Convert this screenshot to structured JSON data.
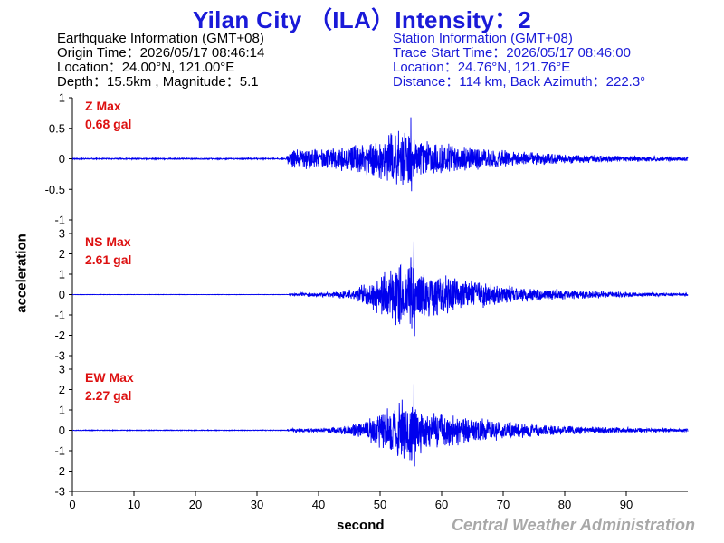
{
  "title": "Yilan City （ILA）Intensity：2",
  "earthquake": {
    "heading": "Earthquake Information  (GMT+08)",
    "origin_time": "Origin Time：2026/05/17 08:46:14",
    "location": "Location：24.00°N, 121.00°E",
    "depth": "Depth：15.5km , Magnitude：5.1"
  },
  "station": {
    "heading": "Station Information  (GMT+08)",
    "trace_start": "Trace Start Time：2026/05/17 08:46:00",
    "location": "Location：24.76°N, 121.76°E",
    "distance": "Distance：114 km, Back Azimuth：222.3°"
  },
  "credit": "Central Weather Administration",
  "colors": {
    "trace": "#0000ee",
    "title": "#1a1ad8",
    "max_label": "#dd1111",
    "credit": "#a8a8a8"
  },
  "chart_data": {
    "type": "line",
    "xlabel": "second",
    "ylabel": "acceleration",
    "xlim": [
      0,
      100
    ],
    "x_ticks": [
      0,
      10,
      20,
      30,
      40,
      50,
      60,
      70,
      80,
      90
    ],
    "grid": false,
    "panels": [
      {
        "name": "Z",
        "max_title": "Z Max",
        "max_value": "0.68 gal",
        "ylim": [
          -1,
          1
        ],
        "y_ticks": [
          "1",
          "0.5",
          "0",
          "-0.5",
          "-1"
        ],
        "y_tick_values": [
          1,
          0.5,
          0,
          -0.5,
          -1
        ],
        "peak": 0.68,
        "noise": 0.012,
        "p_arrival": 34.8,
        "p_level": 0.18,
        "peak_time": 55,
        "seed": 11
      },
      {
        "name": "NS",
        "max_title": "NS Max",
        "max_value": "2.61 gal",
        "ylim": [
          -3,
          3
        ],
        "y_ticks": [
          "3",
          "2",
          "1",
          "0",
          "-1",
          "-2",
          "-3"
        ],
        "y_tick_values": [
          3,
          2,
          1,
          0,
          -1,
          -2,
          -3
        ],
        "peak": 2.61,
        "noise": 0.01,
        "p_arrival": 35.2,
        "p_level": 0.1,
        "peak_time": 55.5,
        "seed": 23
      },
      {
        "name": "EW",
        "max_title": "EW Max",
        "max_value": "2.27 gal",
        "ylim": [
          -3,
          3
        ],
        "y_ticks": [
          "3",
          "2",
          "1",
          "0",
          "-1",
          "-2",
          "-3"
        ],
        "y_tick_values": [
          3,
          2,
          1,
          0,
          -1,
          -2,
          -3
        ],
        "peak": 2.27,
        "noise": 0.02,
        "p_arrival": 34.9,
        "p_level": 0.12,
        "peak_time": 55.5,
        "seed": 37
      }
    ]
  }
}
